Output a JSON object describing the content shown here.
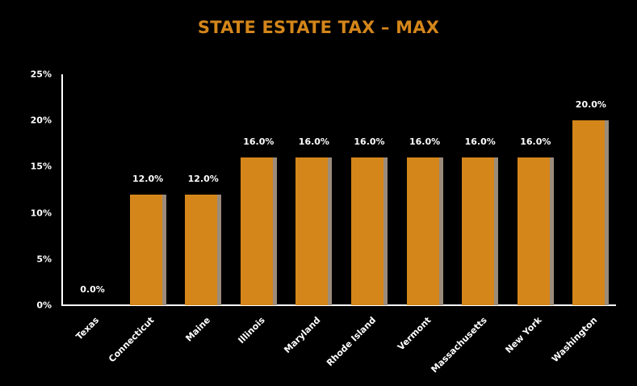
{
  "chart_data": {
    "type": "bar",
    "title": "STATE ESTATE TAX – MAX",
    "xlabel": "",
    "ylabel": "",
    "categories": [
      "Texas",
      "Connecticut",
      "Maine",
      "Illinois",
      "Maryland",
      "Rhode Island",
      "Vermont",
      "Massachusetts",
      "New York",
      "Washington"
    ],
    "values": [
      0.0,
      12.0,
      12.0,
      16.0,
      16.0,
      16.0,
      16.0,
      16.0,
      16.0,
      20.0
    ],
    "value_labels": [
      "0.0%",
      "12.0%",
      "12.0%",
      "16.0%",
      "16.0%",
      "16.0%",
      "16.0%",
      "16.0%",
      "16.0%",
      "20.0%"
    ],
    "ylim": [
      0,
      25
    ],
    "yticks": [
      "0%",
      "5%",
      "10%",
      "15%",
      "20%",
      "25%"
    ],
    "ytick_values": [
      0,
      5,
      10,
      15,
      20,
      25
    ],
    "grid": false,
    "legend": null,
    "colors": {
      "background": "#000000",
      "bar": "#D4861A",
      "bar_shadow": "#9B8B7A",
      "title": "#D4861A",
      "text": "#FFFFFF",
      "axis": "#FFFFFF"
    }
  }
}
